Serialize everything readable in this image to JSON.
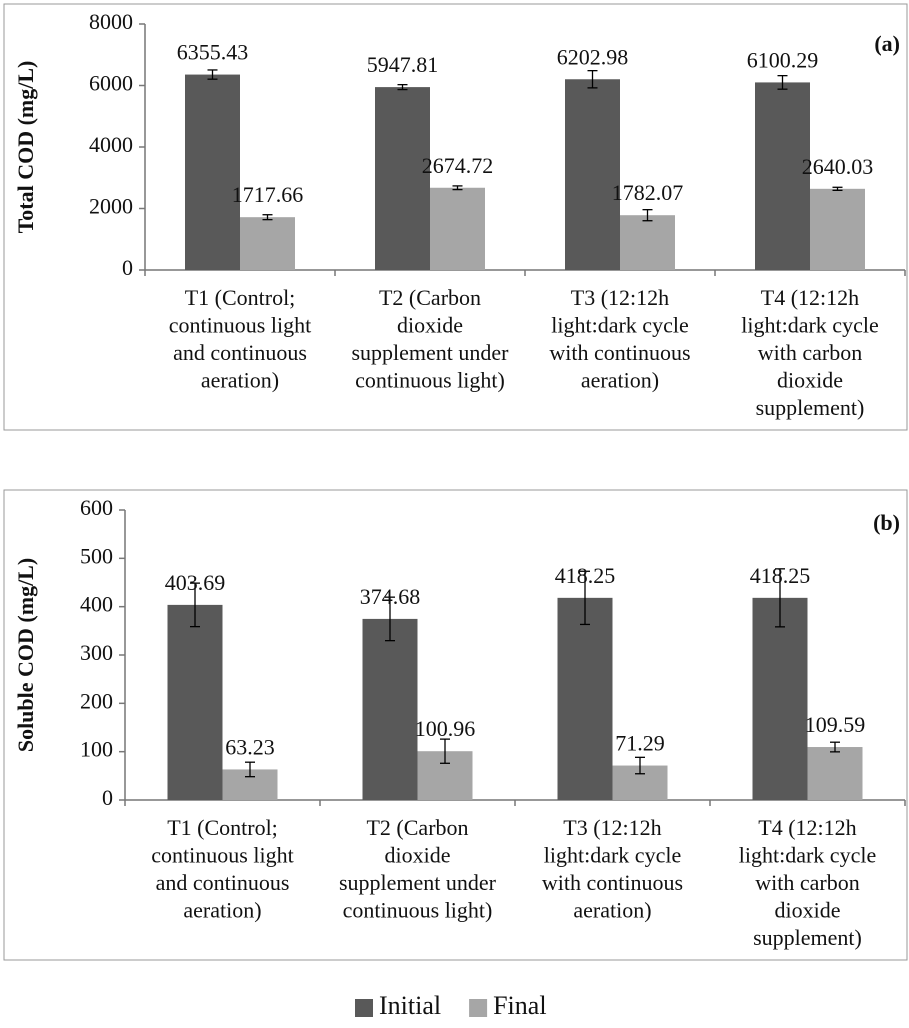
{
  "chart_data": [
    {
      "type": "bar",
      "annotation": "(a)",
      "y_label": "Total COD (mg/L)",
      "categories": [
        [
          "T1 (Control;",
          "continuous light",
          "and continuous",
          "aeration)"
        ],
        [
          "T2 (Carbon",
          "dioxide",
          "supplement under",
          "continuous light)"
        ],
        [
          "T3 (12:12h",
          "light:dark cycle",
          "with continuous",
          "aeration)"
        ],
        [
          "T4 (12:12h",
          "light:dark cycle",
          "with carbon",
          "dioxide",
          "supplement)"
        ]
      ],
      "series": [
        {
          "name": "Initial",
          "color": "#595959",
          "values": [
            6355.43,
            5947.81,
            6202.98,
            6100.29
          ],
          "errors": [
            150,
            80,
            280,
            220
          ]
        },
        {
          "name": "Final",
          "color": "#a6a6a6",
          "values": [
            1717.66,
            2674.72,
            1782.07,
            2640.03
          ],
          "errors": [
            80,
            60,
            180,
            50
          ]
        }
      ],
      "ylim": [
        0,
        8000
      ],
      "yticks": [
        0,
        2000,
        4000,
        6000,
        8000
      ]
    },
    {
      "type": "bar",
      "annotation": "(b)",
      "y_label": "Soluble  COD (mg/L)",
      "categories": [
        [
          "T1 (Control;",
          "continuous light",
          "and continuous",
          "aeration)"
        ],
        [
          "T2 (Carbon",
          "dioxide",
          "supplement under",
          "continuous light)"
        ],
        [
          "T3 (12:12h",
          "light:dark cycle",
          "with continuous",
          "aeration)"
        ],
        [
          "T4 (12:12h",
          "light:dark cycle",
          "with carbon",
          "dioxide",
          "supplement)"
        ]
      ],
      "series": [
        {
          "name": "Initial",
          "color": "#595959",
          "values": [
            403.69,
            374.68,
            418.25,
            418.25
          ],
          "errors": [
            45,
            45,
            55,
            60
          ]
        },
        {
          "name": "Final",
          "color": "#a6a6a6",
          "values": [
            63.23,
            100.96,
            71.29,
            109.59
          ],
          "errors": [
            15,
            25,
            17,
            10
          ]
        }
      ],
      "ylim": [
        0,
        600
      ],
      "yticks": [
        0,
        100,
        200,
        300,
        400,
        500,
        600
      ],
      "legend": "bottom"
    }
  ]
}
